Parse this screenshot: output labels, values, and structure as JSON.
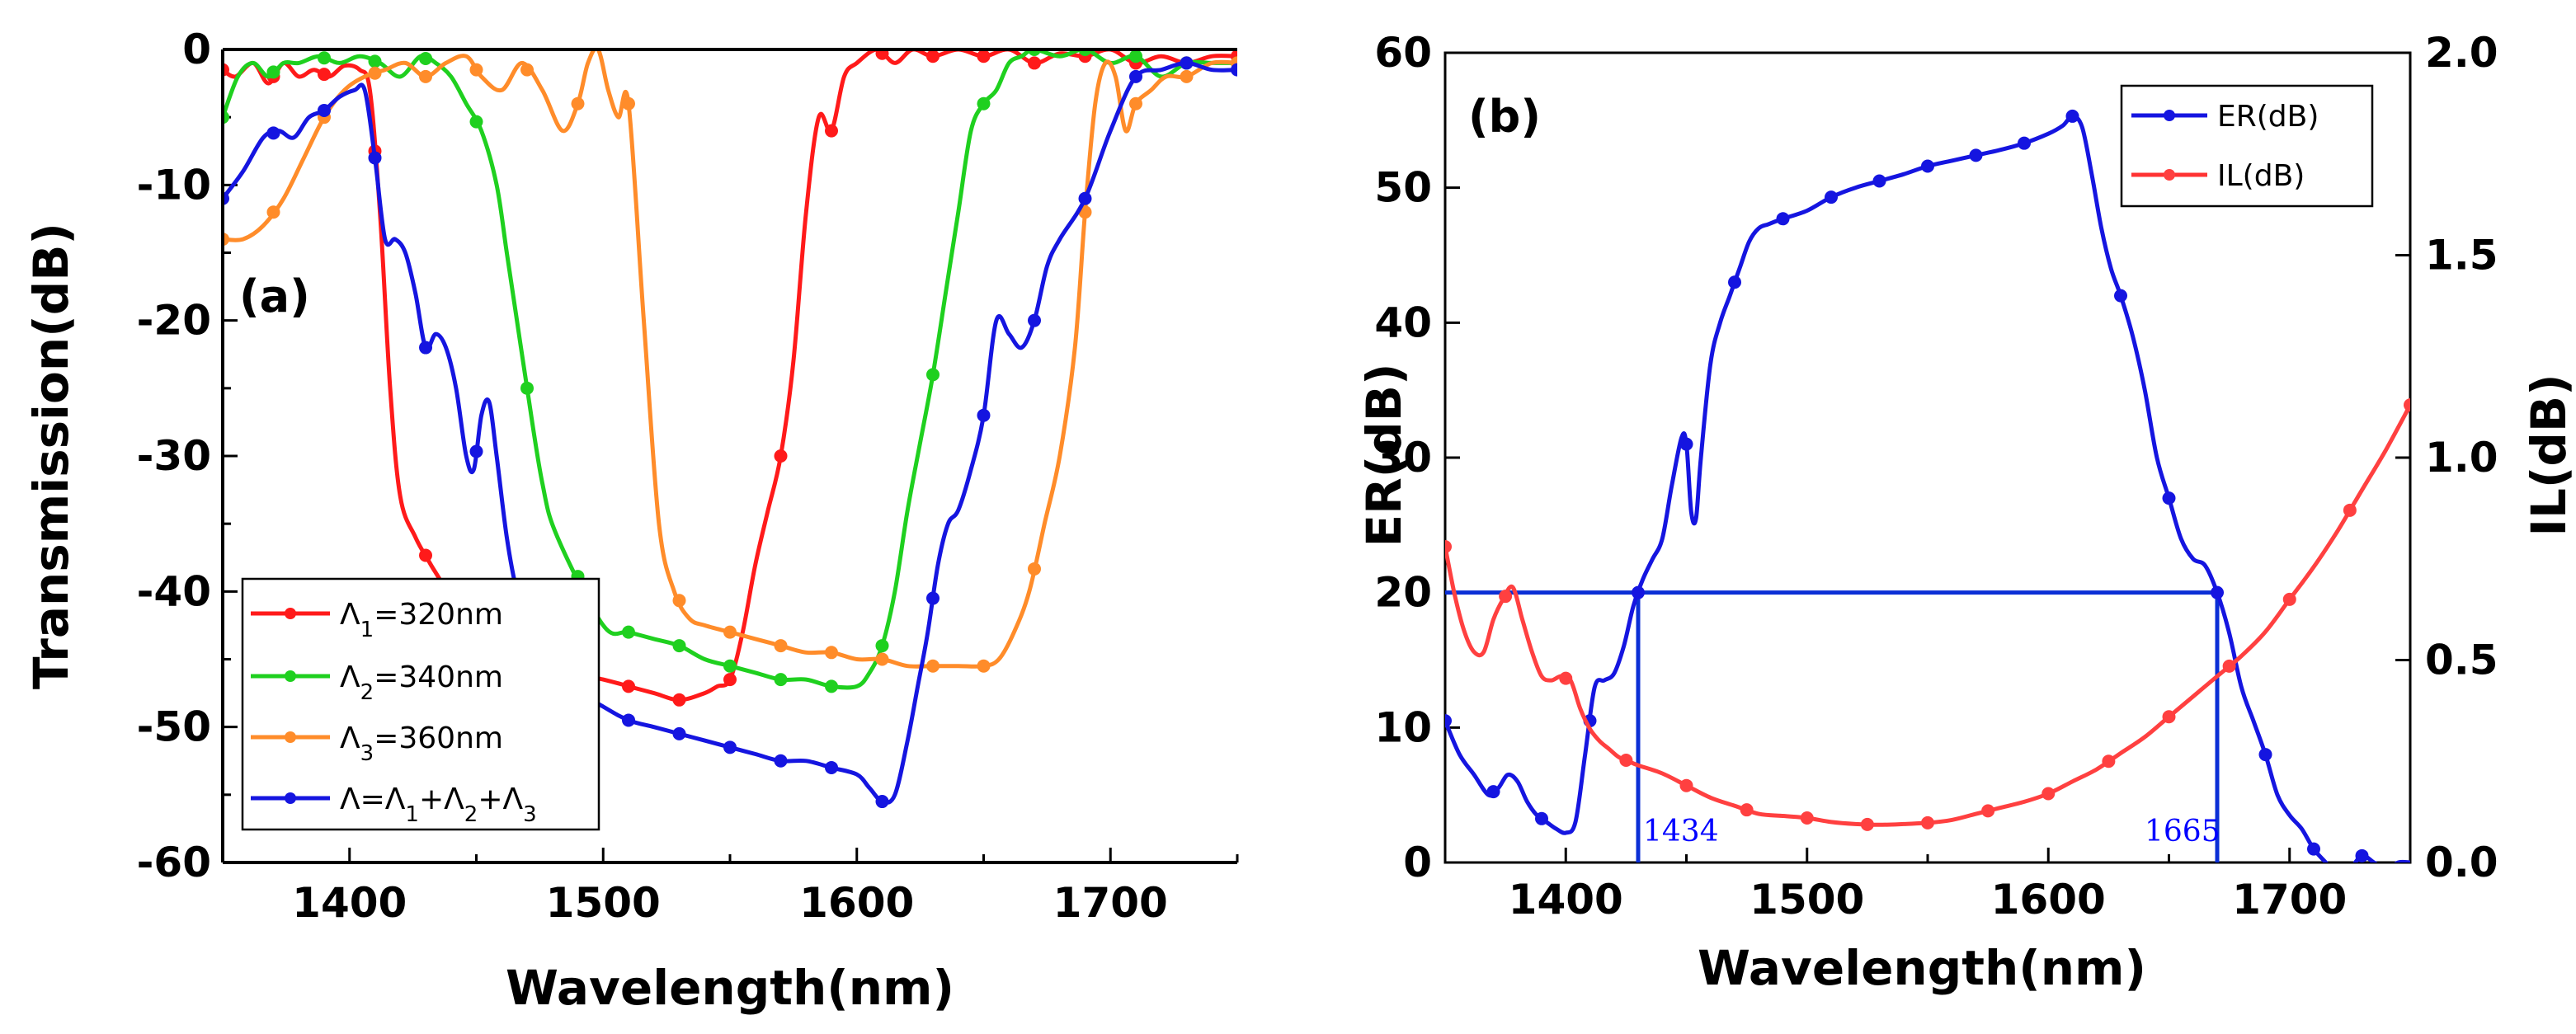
{
  "colors": {
    "red": "#ff1a1a",
    "green": "#1fd01f",
    "orange": "#ff8c2a",
    "blue": "#1515e0",
    "ref_blue": "#0b2fd6",
    "annot_blue": "#0000ff"
  },
  "chart_data": [
    {
      "type": "line",
      "panel_label": "(a)",
      "xlabel": "Wavelength(nm)",
      "ylabel": "Transmission(dB)",
      "xlim": [
        1350,
        1750
      ],
      "ylim": [
        -60,
        0
      ],
      "xticks": [
        1400,
        1500,
        1600,
        1700
      ],
      "xtick_labels": [
        "1400",
        "1500",
        "1600",
        "1700"
      ],
      "yticks": [
        0,
        -10,
        -20,
        -30,
        -40,
        -50,
        -60
      ],
      "ytick_labels": [
        "0",
        "-10",
        "-20",
        "-30",
        "-40",
        "-50",
        "-60"
      ],
      "legend": {
        "placement": "bottom-left",
        "entries": [
          {
            "label_main": "Λ",
            "label_sub": "1",
            "label_rest": "=320nm",
            "color_key": "red"
          },
          {
            "label_main": "Λ",
            "label_sub": "2",
            "label_rest": "=340nm",
            "color_key": "green"
          },
          {
            "label_main": "Λ",
            "label_sub": "3",
            "label_rest": "=360nm",
            "color_key": "orange"
          },
          {
            "label_main": "Λ=Λ",
            "label_sub": "1",
            "label_rest": "+Λ",
            "label_sub2": "2",
            "label_rest2": "+Λ",
            "label_sub3": "3",
            "color_key": "blue"
          }
        ]
      },
      "series": [
        {
          "name": "Λ1=320nm",
          "color_key": "red",
          "x": [
            1350,
            1355,
            1362,
            1368,
            1374,
            1380,
            1386,
            1392,
            1398,
            1404,
            1408,
            1412,
            1416,
            1420,
            1426,
            1432,
            1438,
            1446,
            1500,
            1510,
            1520,
            1530,
            1540,
            1545,
            1550,
            1555,
            1560,
            1565,
            1570,
            1575,
            1580,
            1585,
            1590,
            1595,
            1600,
            1608,
            1615,
            1622,
            1630,
            1640,
            1650,
            1660,
            1670,
            1680,
            1690,
            1700,
            1710,
            1720,
            1730,
            1740,
            1750
          ],
          "y": [
            -1.5,
            -2,
            -1,
            -2.5,
            -1,
            -2,
            -1.5,
            -2,
            -1.2,
            -1.5,
            -3,
            -12,
            -25,
            -33,
            -36,
            -38,
            -40,
            -44,
            -46.5,
            -47,
            -47.5,
            -48,
            -47.5,
            -47,
            -46.5,
            -43,
            -38,
            -34,
            -30,
            -23,
            -12,
            -5,
            -6,
            -2,
            -1,
            0,
            -1,
            0,
            -0.5,
            0,
            -0.5,
            0,
            -1,
            -0.3,
            -0.5,
            0,
            -1,
            -0.5,
            -1,
            -0.5,
            -0.5
          ]
        },
        {
          "name": "Λ2=340nm",
          "color_key": "green",
          "x": [
            1350,
            1356,
            1362,
            1368,
            1374,
            1380,
            1388,
            1396,
            1404,
            1412,
            1420,
            1428,
            1434,
            1440,
            1446,
            1452,
            1458,
            1462,
            1466,
            1470,
            1476,
            1482,
            1500,
            1510,
            1520,
            1530,
            1540,
            1550,
            1560,
            1570,
            1580,
            1590,
            1600,
            1605,
            1610,
            1615,
            1620,
            1625,
            1630,
            1635,
            1640,
            1645,
            1650,
            1655,
            1660,
            1665,
            1670,
            1680,
            1690,
            1700,
            1710,
            1720,
            1730,
            1740,
            1750
          ],
          "y": [
            -5,
            -2,
            -1,
            -2,
            -1,
            -1,
            -0.5,
            -1,
            -0.5,
            -1,
            -2,
            -0.5,
            -1,
            -2,
            -4,
            -6,
            -10,
            -15,
            -20,
            -25,
            -32,
            -36,
            -42.5,
            -43,
            -43.5,
            -44,
            -45,
            -45.5,
            -46,
            -46.5,
            -46.5,
            -47,
            -47,
            -46,
            -44,
            -40,
            -34,
            -29,
            -24,
            -18,
            -12,
            -6,
            -4,
            -3,
            -1,
            -0.5,
            0,
            -0.5,
            0,
            -1,
            -0.5,
            -2,
            -1,
            -1,
            -1
          ]
        },
        {
          "name": "Λ3=360nm",
          "color_key": "orange",
          "x": [
            1350,
            1358,
            1366,
            1374,
            1382,
            1390,
            1398,
            1406,
            1414,
            1422,
            1430,
            1438,
            1446,
            1452,
            1460,
            1468,
            1476,
            1484,
            1490,
            1494,
            1498,
            1502,
            1506,
            1510,
            1516,
            1522,
            1528,
            1534,
            1540,
            1550,
            1560,
            1570,
            1580,
            1590,
            1600,
            1610,
            1620,
            1630,
            1640,
            1650,
            1656,
            1662,
            1668,
            1674,
            1680,
            1686,
            1690,
            1694,
            1698,
            1702,
            1706,
            1710,
            1716,
            1722,
            1730,
            1740,
            1750
          ],
          "y": [
            -14,
            -14,
            -13,
            -11,
            -8,
            -5,
            -3,
            -2,
            -1.5,
            -1,
            -2,
            -1,
            -0.5,
            -2,
            -3,
            -1,
            -3,
            -6,
            -4,
            -1,
            0,
            -3,
            -5,
            -4,
            -20,
            -35,
            -40,
            -42,
            -42.5,
            -43,
            -43.5,
            -44,
            -44.5,
            -44.5,
            -45,
            -45,
            -45.5,
            -45.5,
            -45.5,
            -45.5,
            -45,
            -43,
            -40,
            -35,
            -30,
            -22,
            -12,
            -4,
            -1,
            -2,
            -6,
            -4,
            -3,
            -2,
            -2,
            -1,
            -1
          ]
        },
        {
          "name": "Λ=Λ1+Λ2+Λ3",
          "color_key": "blue",
          "x": [
            1350,
            1358,
            1366,
            1372,
            1378,
            1384,
            1390,
            1396,
            1402,
            1406,
            1410,
            1414,
            1418,
            1422,
            1426,
            1430,
            1434,
            1438,
            1442,
            1446,
            1449,
            1452,
            1455,
            1458,
            1462,
            1466,
            1470,
            1474,
            1478,
            1500,
            1510,
            1520,
            1530,
            1540,
            1550,
            1560,
            1570,
            1580,
            1590,
            1600,
            1605,
            1610,
            1615,
            1620,
            1624,
            1628,
            1632,
            1636,
            1640,
            1645,
            1650,
            1655,
            1660,
            1665,
            1670,
            1675,
            1680,
            1690,
            1700,
            1710,
            1720,
            1730,
            1740,
            1750
          ],
          "y": [
            -11,
            -9,
            -6.5,
            -6,
            -6.5,
            -5,
            -4.5,
            -3.5,
            -3,
            -3,
            -8,
            -14,
            -14,
            -15,
            -18,
            -22,
            -21,
            -22,
            -25,
            -30,
            -31,
            -27,
            -26,
            -30,
            -36,
            -40,
            -42,
            -44,
            -46,
            -48.5,
            -49.5,
            -50,
            -50.5,
            -51,
            -51.5,
            -52,
            -52.5,
            -52.5,
            -53,
            -53.5,
            -54.5,
            -55.5,
            -55,
            -51,
            -47,
            -43,
            -38,
            -35,
            -34,
            -31,
            -27,
            -20,
            -21,
            -22,
            -20,
            -16,
            -14,
            -11,
            -6,
            -2,
            -1.5,
            -1,
            -1.5,
            -1.5
          ]
        }
      ]
    },
    {
      "type": "line",
      "panel_label": "(b)",
      "xlabel": "Wavelength(nm)",
      "ylabel_left": "ER(dB)",
      "ylabel_right": "IL(dB)",
      "xlim": [
        1350,
        1750
      ],
      "ylim_left": [
        0,
        60
      ],
      "ylim_right": [
        0,
        2.0
      ],
      "xticks": [
        1400,
        1500,
        1600,
        1700
      ],
      "xtick_labels": [
        "1400",
        "1500",
        "1600",
        "1700"
      ],
      "yticks_left": [
        0,
        10,
        20,
        30,
        40,
        50,
        60
      ],
      "ytick_labels_left": [
        "0",
        "10",
        "20",
        "30",
        "40",
        "50",
        "60"
      ],
      "yticks_right": [
        0,
        0.5,
        1.0,
        1.5,
        2.0
      ],
      "ytick_labels_right": [
        "0.0",
        "0.5",
        "1.0",
        "1.5",
        "2.0"
      ],
      "legend": {
        "placement": "top-right",
        "entries": [
          {
            "label": "ER(dB)",
            "color_key": "blue"
          },
          {
            "label": "IL(dB)",
            "color_key": "red"
          }
        ]
      },
      "reference": {
        "level_db": 20,
        "x_start": 1430,
        "x_end": 1670,
        "annotations": [
          "1434",
          "1665"
        ]
      },
      "series": [
        {
          "name": "ER(dB)",
          "axis": "left",
          "color_key": "blue",
          "x": [
            1350,
            1356,
            1362,
            1368,
            1372,
            1376,
            1380,
            1384,
            1388,
            1392,
            1396,
            1400,
            1404,
            1408,
            1412,
            1416,
            1420,
            1424,
            1428,
            1432,
            1436,
            1440,
            1444,
            1448,
            1450,
            1452,
            1454,
            1456,
            1460,
            1464,
            1468,
            1472,
            1476,
            1480,
            1484,
            1490,
            1500,
            1510,
            1520,
            1530,
            1540,
            1550,
            1560,
            1570,
            1580,
            1590,
            1600,
            1606,
            1610,
            1614,
            1618,
            1622,
            1626,
            1630,
            1635,
            1640,
            1645,
            1650,
            1655,
            1660,
            1665,
            1670,
            1675,
            1680,
            1685,
            1690,
            1695,
            1700,
            1705,
            1710,
            1715,
            1720,
            1725,
            1730,
            1735,
            1740,
            1745,
            1750
          ],
          "y": [
            10.5,
            8,
            6.5,
            5,
            5.5,
            6.5,
            6,
            4.5,
            3.5,
            3,
            2.5,
            2.2,
            3,
            8,
            13,
            13.5,
            14,
            16,
            19,
            21,
            22.5,
            24,
            28,
            31.5,
            31,
            26,
            25.5,
            30,
            37,
            40,
            42,
            44,
            46,
            47,
            47.3,
            47.7,
            48.3,
            49.3,
            50,
            50.5,
            51,
            51.6,
            52,
            52.4,
            52.8,
            53.3,
            54,
            54.6,
            55.3,
            54.5,
            51,
            47,
            44,
            42,
            39,
            35,
            30,
            27,
            24,
            22.5,
            22,
            20,
            17,
            13,
            10.5,
            8,
            5,
            3.5,
            2.5,
            1,
            0,
            -1,
            -0.5,
            0.5,
            0,
            -0.5,
            0,
            0
          ]
        },
        {
          "name": "IL(dB)",
          "axis": "right",
          "color_key": "red",
          "x": [
            1350,
            1354,
            1358,
            1362,
            1366,
            1370,
            1374,
            1378,
            1382,
            1386,
            1390,
            1394,
            1398,
            1402,
            1406,
            1410,
            1414,
            1418,
            1422,
            1426,
            1430,
            1440,
            1450,
            1460,
            1470,
            1480,
            1490,
            1500,
            1510,
            1520,
            1530,
            1540,
            1550,
            1560,
            1570,
            1580,
            1590,
            1600,
            1610,
            1620,
            1630,
            1640,
            1650,
            1660,
            1670,
            1680,
            1690,
            1700,
            1710,
            1720,
            1730,
            1740,
            1750
          ],
          "y": [
            0.78,
            0.66,
            0.57,
            0.52,
            0.52,
            0.6,
            0.65,
            0.68,
            0.6,
            0.52,
            0.46,
            0.45,
            0.46,
            0.45,
            0.38,
            0.33,
            0.3,
            0.28,
            0.26,
            0.25,
            0.24,
            0.22,
            0.19,
            0.16,
            0.14,
            0.12,
            0.115,
            0.11,
            0.1,
            0.095,
            0.093,
            0.095,
            0.098,
            0.105,
            0.12,
            0.135,
            0.15,
            0.17,
            0.2,
            0.23,
            0.27,
            0.31,
            0.36,
            0.41,
            0.46,
            0.51,
            0.57,
            0.65,
            0.73,
            0.82,
            0.92,
            1.02,
            1.13
          ]
        }
      ]
    }
  ]
}
